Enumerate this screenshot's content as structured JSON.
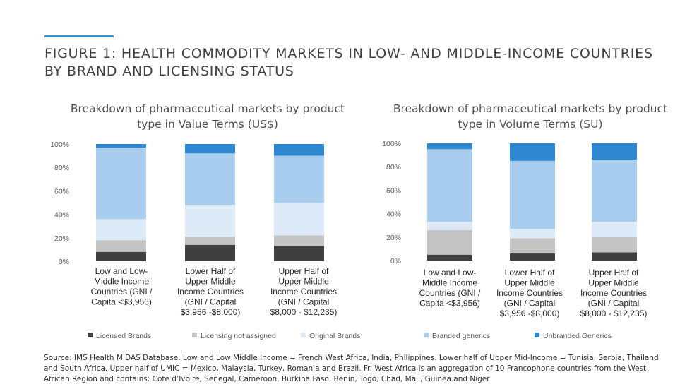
{
  "figure": {
    "title_line1": "FIGURE 1: HEALTH COMMODITY MARKETS IN LOW- AND MIDDLE-INCOME COUNTRIES",
    "title_line2": "BY BRAND AND LICENSING STATUS",
    "accent_color": "#3a8fd0"
  },
  "source": {
    "line1": "Source: IMS Health MIDAS Database. Low and Low Middle Income = French West Africa, India, Philippines. Lower half of Upper Mid-Income = Tunisia, Serbia, Thailand",
    "line2": "and South Africa. Upper half of UMIC = Mexico, Malaysia, Turkey, Romania and Brazil. Fr. West Africa is an aggregation of 10 Francophone countries from the West",
    "line3": "African Region and contains: Cote d’Ivoire, Senegal, Cameroon, Burkina Faso, Benin, Togo, Chad, Mali, Guinea and Niger"
  },
  "legend": [
    {
      "label": "Licensed Brands",
      "color": "#3f3f3f"
    },
    {
      "label": "Licensing not assigned",
      "color": "#c4c4c4"
    },
    {
      "label": "Original Brands",
      "color": "#ddeaf8"
    },
    {
      "label": "Branded generics",
      "color": "#a9cdee"
    },
    {
      "label": "Unbranded Generics",
      "color": "#2f88cf"
    }
  ],
  "chart_data": [
    {
      "type": "bar",
      "stacked": true,
      "title_lines": [
        "Breakdown of pharmaceutical markets by product",
        "type in Value Terms (US$)"
      ],
      "y_ticks": [
        "0%",
        "20%",
        "40%",
        "60%",
        "80%",
        "100%"
      ],
      "ylim": [
        0,
        100
      ],
      "categories": [
        [
          "Low and Low-",
          "Middle Income",
          "Countries (GNI /",
          "Capita <$3,956)"
        ],
        [
          "Lower Half of",
          "Upper Middle",
          "Income Countries",
          "(GNI / Capital",
          "$3,956 -$8,000)"
        ],
        [
          "Upper Half of",
          "Upper Middle",
          "Income Countries",
          "(GNI / Capital",
          "$8,000 - $12,235)"
        ]
      ],
      "series": [
        {
          "name": "Licensed Brands",
          "values": [
            8,
            14,
            13
          ]
        },
        {
          "name": "Licensing not assigned",
          "values": [
            10,
            7,
            9
          ]
        },
        {
          "name": "Original Brands",
          "values": [
            18,
            27,
            28
          ]
        },
        {
          "name": "Branded generics",
          "values": [
            61,
            44,
            40
          ]
        },
        {
          "name": "Unbranded Generics",
          "values": [
            3,
            8,
            10
          ]
        }
      ]
    },
    {
      "type": "bar",
      "stacked": true,
      "title_lines": [
        "Breakdown of pharmaceutical markets by product",
        "type in Volume Terms (SU)"
      ],
      "y_ticks": [
        "0%",
        "20%",
        "40%",
        "60%",
        "80%",
        "100%"
      ],
      "ylim": [
        0,
        100
      ],
      "categories": [
        [
          "Low and Low-",
          "Middle Income",
          "Countries (GNI /",
          "Capita <$3,956)"
        ],
        [
          "Lower Half of",
          "Upper Middle",
          "Income Countries",
          "(GNI / Capital",
          "$3,956 -$8,000)"
        ],
        [
          "Upper Half of",
          "Upper Middle",
          "Income Countries",
          "(GNI / Capital",
          "$8,000 - $12,235)"
        ]
      ],
      "series": [
        {
          "name": "Licensed Brands",
          "values": [
            5,
            6,
            7
          ]
        },
        {
          "name": "Licensing not assigned",
          "values": [
            21,
            13,
            13
          ]
        },
        {
          "name": "Original Brands",
          "values": [
            7,
            8,
            13
          ]
        },
        {
          "name": "Branded generics",
          "values": [
            62,
            58,
            53
          ]
        },
        {
          "name": "Unbranded Generics",
          "values": [
            5,
            15,
            14
          ]
        }
      ]
    }
  ]
}
